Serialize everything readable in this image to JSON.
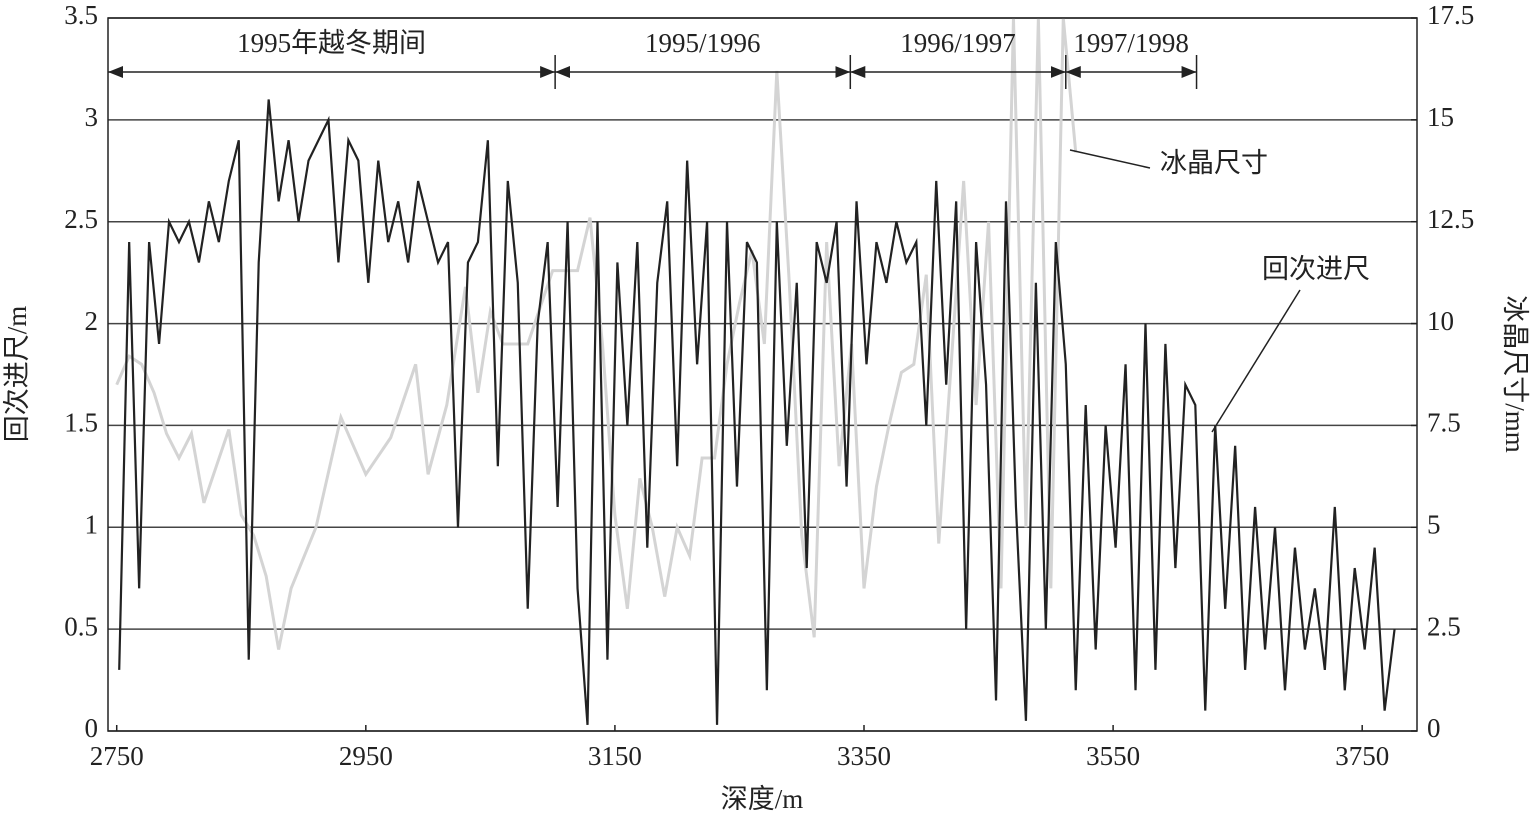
{
  "chart_data": {
    "type": "line",
    "x_label": "深度/m",
    "y_label": "回次进尺/m",
    "y2_label": "冰晶尺寸/mm",
    "xlim": [
      2743,
      3794
    ],
    "xticks": [
      2750,
      2950,
      3150,
      3350,
      3550,
      3750
    ],
    "ylim": [
      0,
      3.5
    ],
    "yticks": [
      0,
      0.5,
      1,
      1.5,
      2,
      2.5,
      3,
      3.5
    ],
    "y2lim": [
      0,
      17.5
    ],
    "y2ticks": [
      0,
      2.5,
      5,
      7.5,
      10,
      12.5,
      15,
      17.5
    ],
    "grid": true,
    "periods": [
      {
        "label": "1995年越冬期间",
        "start": 2743,
        "end": 3102
      },
      {
        "label": "1995/1996",
        "start": 3102,
        "end": 3339
      },
      {
        "label": "1996/1997",
        "start": 3339,
        "end": 3512
      },
      {
        "label": "1997/1998",
        "start": 3512,
        "end": 3617
      }
    ],
    "series": [
      {
        "name": "冰晶尺寸",
        "color": "#d4d4d4",
        "axis": "y2",
        "x": [
          2750,
          2760,
          2770,
          2780,
          2790,
          2800,
          2810,
          2820,
          2830,
          2840,
          2850,
          2860,
          2870,
          2880,
          2890,
          2910,
          2930,
          2950,
          2970,
          2990,
          3000,
          3015,
          3030,
          3040,
          3050,
          3060,
          3080,
          3100,
          3120,
          3130,
          3140,
          3150,
          3160,
          3170,
          3180,
          3190,
          3200,
          3210,
          3220,
          3230,
          3240,
          3250,
          3260,
          3270,
          3280,
          3290,
          3300,
          3310,
          3320,
          3330,
          3340,
          3350,
          3360,
          3370,
          3380,
          3390,
          3400,
          3410,
          3420,
          3430,
          3440,
          3450,
          3460,
          3470,
          3480,
          3490,
          3500,
          3510,
          3520
        ],
        "values": [
          8.5,
          9.2,
          9.0,
          8.3,
          7.3,
          6.7,
          7.3,
          5.6,
          6.5,
          7.4,
          5.3,
          4.8,
          3.8,
          2.0,
          3.5,
          5.0,
          7.7,
          6.3,
          7.2,
          9.0,
          6.3,
          8.0,
          10.9,
          8.3,
          10.3,
          9.5,
          9.5,
          11.3,
          11.3,
          12.6,
          9.5,
          5.3,
          3.0,
          6.2,
          5.0,
          3.3,
          5.0,
          4.3,
          6.7,
          6.7,
          9.0,
          10.5,
          11.8,
          9.5,
          16.2,
          11.0,
          4.8,
          2.3,
          12.0,
          6.5,
          9.5,
          3.5,
          6.0,
          7.5,
          8.8,
          9.0,
          11.2,
          4.6,
          9.0,
          13.5,
          8.0,
          12.5,
          3.5,
          17.5,
          5.0,
          17.5,
          3.5,
          17.5,
          14.2
        ]
      },
      {
        "name": "回次进尺",
        "color": "#222222",
        "x": [
          2752,
          2760,
          2768,
          2776,
          2784,
          2792,
          2800,
          2808,
          2816,
          2824,
          2832,
          2840,
          2848,
          2856,
          2864,
          2872,
          2880,
          2888,
          2896,
          2904,
          2912,
          2920,
          2928,
          2936,
          2944,
          2952,
          2960,
          2968,
          2976,
          2984,
          2992,
          3000,
          3008,
          3016,
          3024,
          3032,
          3040,
          3048,
          3056,
          3064,
          3072,
          3080,
          3088,
          3096,
          3104,
          3112,
          3120,
          3128,
          3136,
          3144,
          3152,
          3160,
          3168,
          3176,
          3184,
          3192,
          3200,
          3208,
          3216,
          3224,
          3232,
          3240,
          3248,
          3256,
          3264,
          3272,
          3280,
          3288,
          3296,
          3304,
          3312,
          3320,
          3328,
          3336,
          3344,
          3352,
          3360,
          3368,
          3376,
          3384,
          3392,
          3400,
          3408,
          3416,
          3424,
          3432,
          3440,
          3448,
          3456,
          3464,
          3472,
          3480,
          3488,
          3496,
          3504,
          3512,
          3520,
          3528,
          3536,
          3544,
          3552,
          3560,
          3568,
          3576,
          3584,
          3592,
          3600,
          3608,
          3616,
          3624,
          3632,
          3640,
          3648,
          3656,
          3664,
          3672,
          3680,
          3688,
          3696,
          3704,
          3712,
          3720,
          3728,
          3736,
          3744,
          3752,
          3760,
          3768,
          3776
        ],
        "values": [
          0.3,
          2.4,
          0.7,
          2.4,
          1.9,
          2.5,
          2.4,
          2.5,
          2.3,
          2.6,
          2.4,
          2.7,
          2.9,
          0.35,
          2.3,
          3.1,
          2.6,
          2.9,
          2.5,
          2.8,
          2.9,
          3.0,
          2.3,
          2.9,
          2.8,
          2.2,
          2.8,
          2.4,
          2.6,
          2.3,
          2.7,
          2.5,
          2.3,
          2.4,
          1.0,
          2.3,
          2.4,
          2.9,
          1.3,
          2.7,
          2.2,
          0.6,
          2.0,
          2.4,
          1.1,
          2.5,
          0.7,
          0.03,
          2.5,
          0.35,
          2.3,
          1.5,
          2.4,
          0.9,
          2.2,
          2.6,
          1.3,
          2.8,
          1.8,
          2.5,
          0.03,
          2.5,
          1.2,
          2.4,
          2.3,
          0.2,
          2.5,
          1.4,
          2.2,
          0.8,
          2.4,
          2.2,
          2.5,
          1.2,
          2.6,
          1.8,
          2.4,
          2.2,
          2.5,
          2.3,
          2.4,
          1.5,
          2.7,
          1.7,
          2.6,
          0.5,
          2.4,
          1.7,
          0.15,
          2.6,
          1.1,
          0.05,
          2.2,
          0.5,
          2.4,
          1.8,
          0.2,
          1.6,
          0.4,
          1.5,
          0.9,
          1.8,
          0.2,
          2.0,
          0.3,
          1.9,
          0.8,
          1.7,
          1.6,
          0.1,
          1.5,
          0.6,
          1.4,
          0.3,
          1.1,
          0.4,
          1.0,
          0.2,
          0.9,
          0.4,
          0.7,
          0.3,
          1.1,
          0.2,
          0.8,
          0.4,
          0.9,
          0.1,
          0.5
        ]
      }
    ]
  }
}
